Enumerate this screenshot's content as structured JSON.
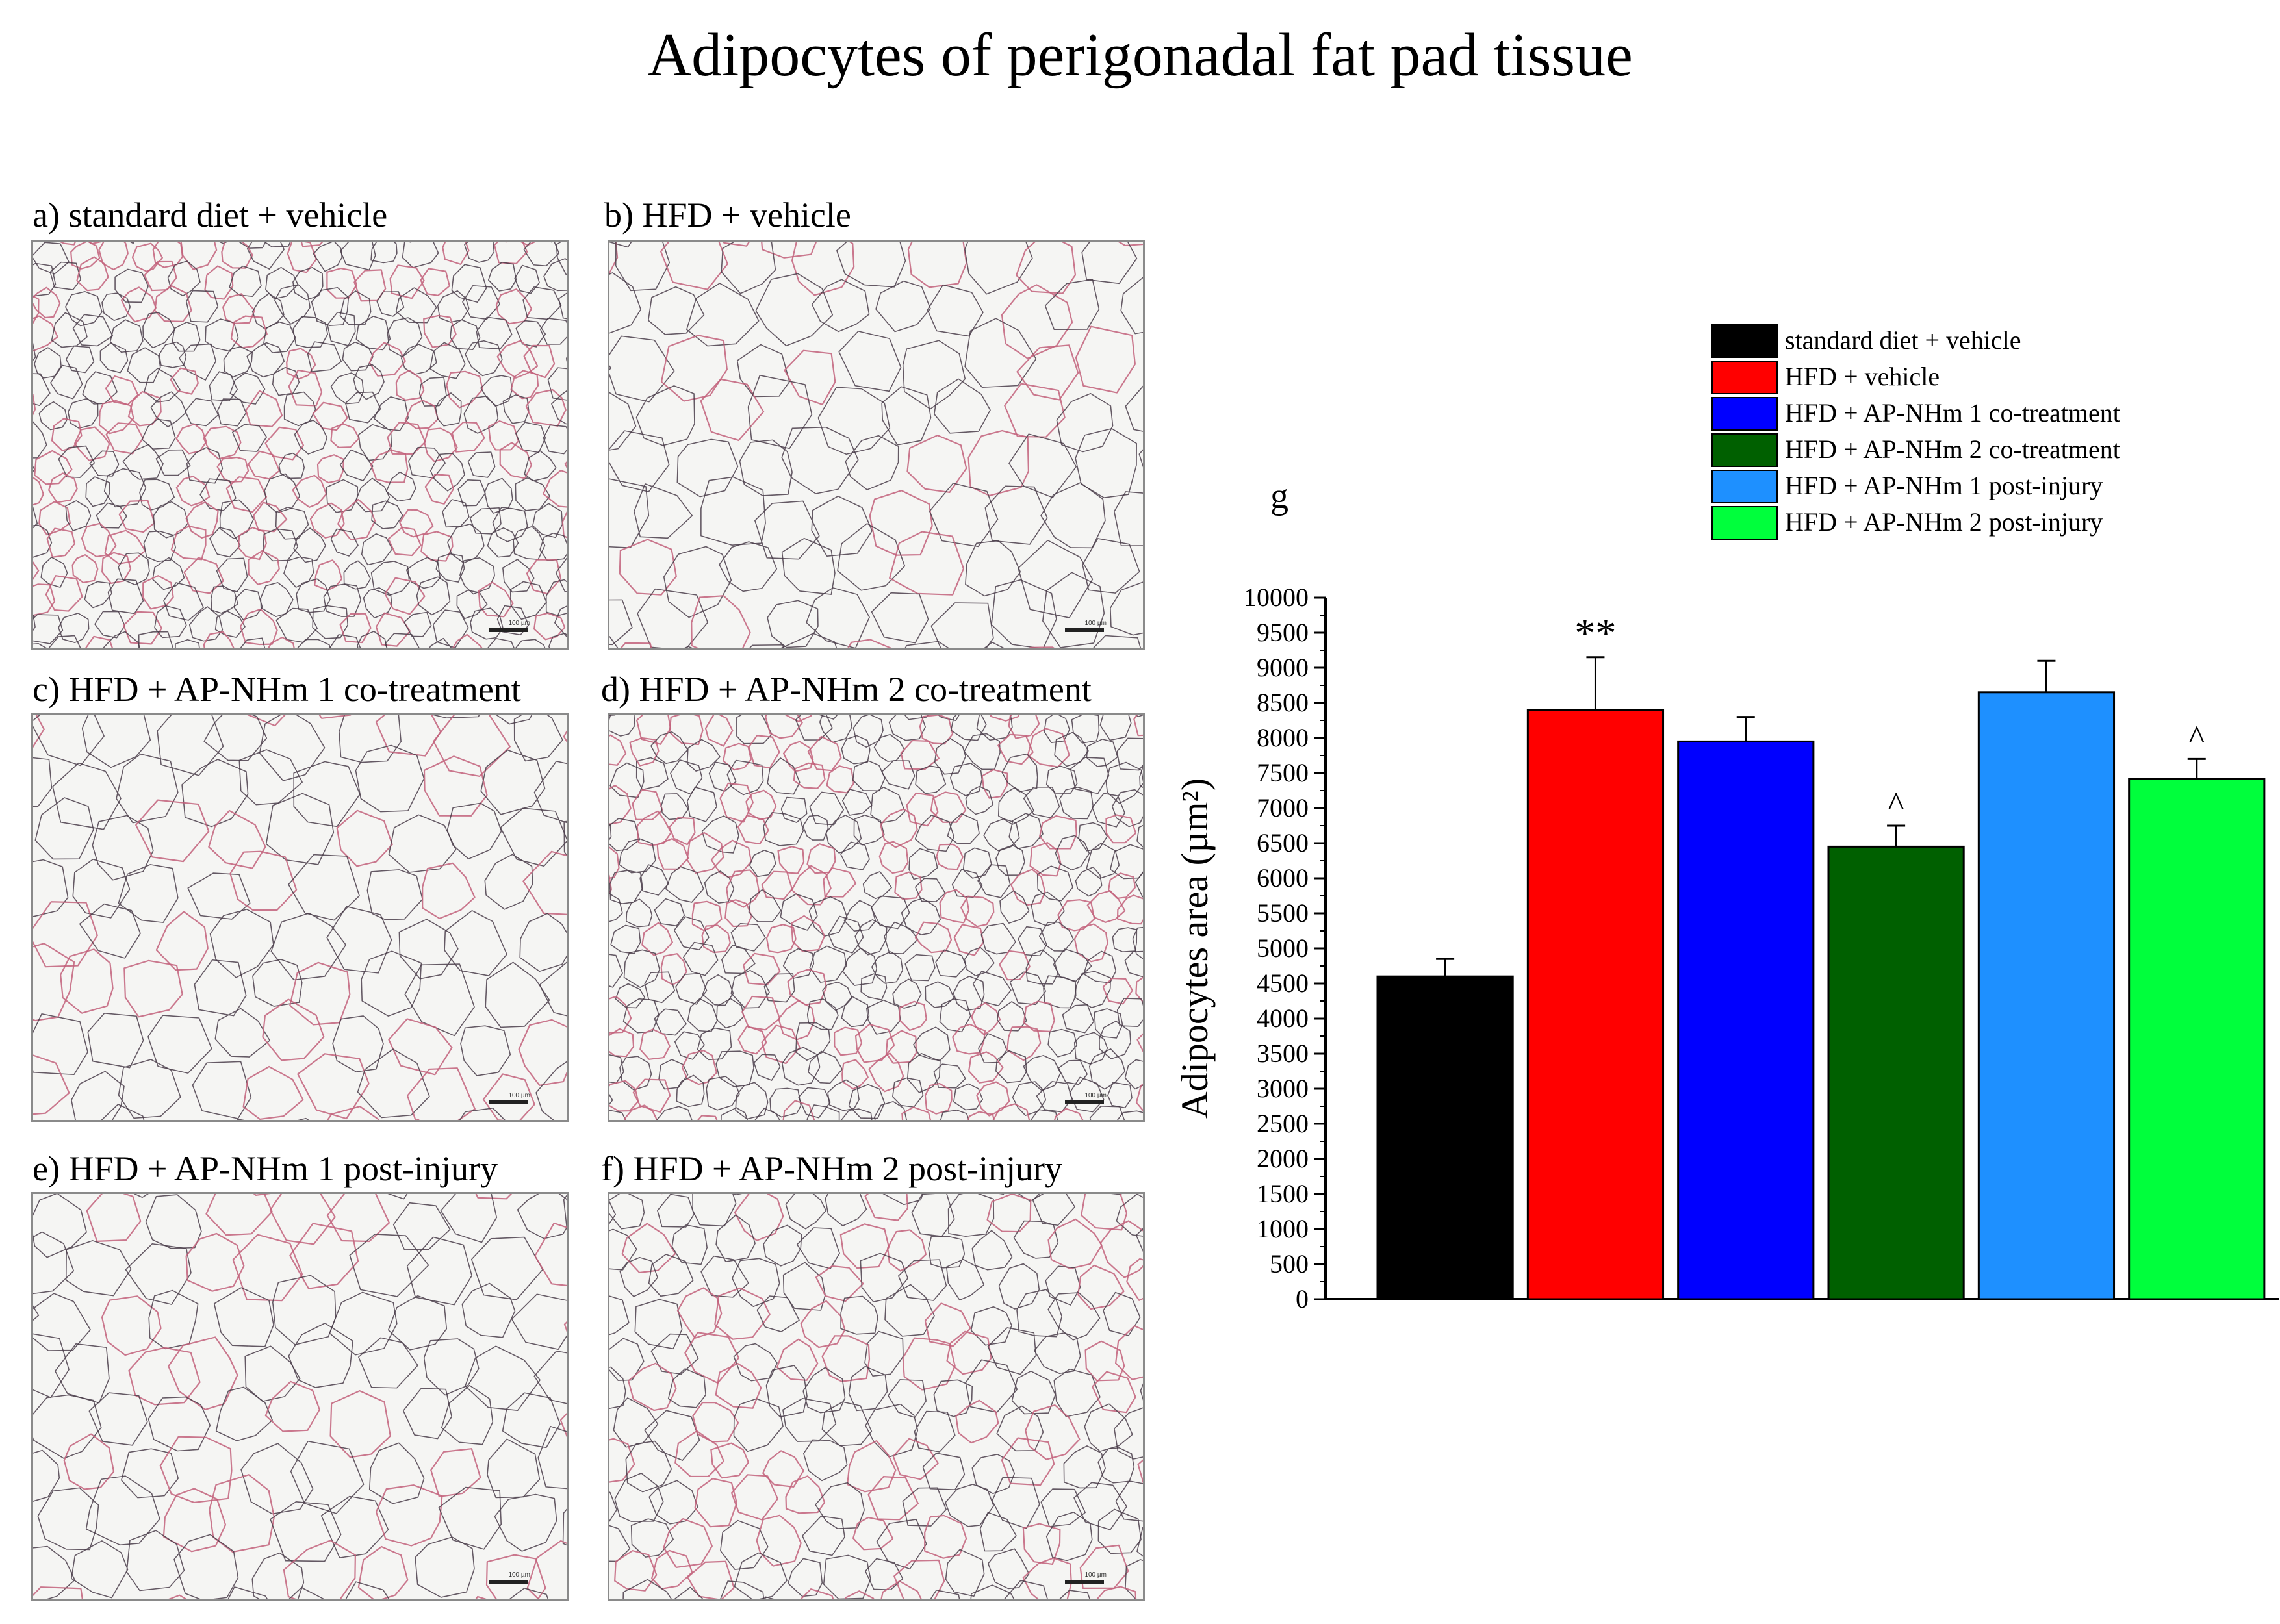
{
  "title": "Adipocytes of perigonadal fat pad tissue",
  "panels": [
    {
      "id": "a",
      "caption": "a) standard diet + vehicle",
      "density": "small"
    },
    {
      "id": "b",
      "caption": "b) HFD + vehicle",
      "density": "large"
    },
    {
      "id": "c",
      "caption": "c) HFD + AP-NHm 1 co-treatment",
      "density": "large"
    },
    {
      "id": "d",
      "caption": "d) HFD + AP-NHm 2 co-treatment",
      "density": "small"
    },
    {
      "id": "e",
      "caption": "e) HFD + AP-NHm 1 post-injury",
      "density": "large"
    },
    {
      "id": "f",
      "caption": "f) HFD + AP-NHm 2 post-injury",
      "density": "medium"
    }
  ],
  "scale_label": "100 µm",
  "chart_data": {
    "type": "bar",
    "panel_label": "g",
    "ylabel": "Adipocytes area (µm²)",
    "xlabel": "",
    "ylim": [
      0,
      10000
    ],
    "yticks": [
      0,
      500,
      1000,
      1500,
      2000,
      2500,
      3000,
      3500,
      4000,
      4500,
      5000,
      5500,
      6000,
      6500,
      7000,
      7500,
      8000,
      8500,
      9000,
      9500,
      10000
    ],
    "grid": false,
    "legend_position": "top-right",
    "categories": [
      "standard diet + vehicle",
      "HFD + vehicle",
      "HFD + AP-NHm 1 co-treatment",
      "HFD + AP-NHm 2 co-treatment",
      "HFD + AP-NHm 1 post-injury",
      "HFD + AP-NHm 2 post-injury"
    ],
    "values": [
      4600,
      8400,
      7950,
      6450,
      8650,
      7420
    ],
    "errors": [
      250,
      750,
      350,
      300,
      450,
      280
    ],
    "annotations": [
      "",
      "**",
      "",
      "^",
      "",
      "^"
    ],
    "colors": [
      "#000000",
      "#ff0000",
      "#0000ff",
      "#006000",
      "#1e90ff",
      "#00ff3c"
    ]
  }
}
